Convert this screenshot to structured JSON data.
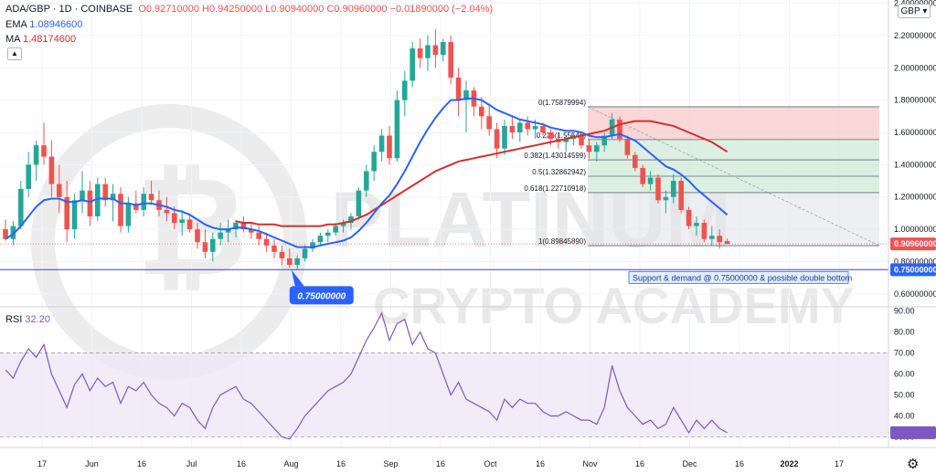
{
  "header": {
    "symbol": "ADA/GBP",
    "interval": "1D",
    "exchange": "COINBASE",
    "ohlc": "O0.92710000 H0.94250000 L0.90940000 C0.90960000 −0.01890000 (−2.04%)",
    "ema_label": "EMA",
    "ema_value": "1.08946600",
    "ma_label": "MA",
    "ma_value": "1.48174600"
  },
  "currency_button": "GBP",
  "collapse_icon": "chevron-up-icon",
  "settings_icon": "gear-icon",
  "colors": {
    "up": "#26a69a",
    "down": "#ef5350",
    "ema": "#2962ff",
    "ma": "#d32f2f",
    "support": "#2962ff",
    "rsi": "#7e57c2",
    "fib_red_zone": "#f7c9c9",
    "fib_green_zone": "#cfe8d6",
    "price_tag": "#ef5350"
  },
  "watermark": {
    "line1": "PLATINUM",
    "line2": "CRYPTO ACADEMY"
  },
  "chart_data": [
    {
      "type": "candlestick",
      "title": "ADA/GBP · 1D · COINBASE",
      "x_ticks": [
        "17",
        "Jun",
        "16",
        "Jul",
        "16",
        "Aug",
        "16",
        "Sep",
        "16",
        "Oct",
        "16",
        "Nov",
        "16",
        "Dec",
        "16",
        "2022",
        "17"
      ],
      "y_ticks": [
        "0.60000000",
        "0.80000000",
        "1.00000000",
        "1.20000000",
        "1.40000000",
        "1.60000000",
        "1.80000000",
        "2.00000000",
        "2.20000000",
        "2.40000000"
      ],
      "ylim": [
        0.52,
        2.42
      ],
      "last_price": 0.9096,
      "last_price_label": "0.90960000",
      "support_level": 0.75,
      "support_label": "0.75000000",
      "support_callout": "0.75000000",
      "support_note": "Support & demand @ 0.75000000 & possible double bottom",
      "fib_levels": [
        {
          "label": "0(1.75879994)",
          "value": 1.7588
        },
        {
          "label": "0.382(1.43014599)",
          "value": 1.43015
        },
        {
          "label": "0.5(1.32862942)",
          "value": 1.32863
        },
        {
          "label": "0.618(1.22710918)",
          "value": 1.22711
        },
        {
          "label": "1(0.89845890)",
          "value": 0.89846
        }
      ],
      "fib_hidden_label": "0.236(1.55546)",
      "fib_hidden_value": 1.55546,
      "candles": [
        [
          1.0,
          1.06,
          0.93,
          0.94
        ],
        [
          0.94,
          1.05,
          0.9,
          1.02
        ],
        [
          1.02,
          1.3,
          1.0,
          1.25
        ],
        [
          1.25,
          1.48,
          1.2,
          1.4
        ],
        [
          1.4,
          1.55,
          1.3,
          1.52
        ],
        [
          1.52,
          1.66,
          1.4,
          1.45
        ],
        [
          1.45,
          1.55,
          1.2,
          1.28
        ],
        [
          1.28,
          1.4,
          1.1,
          1.2
        ],
        [
          1.2,
          1.3,
          0.92,
          1.0
        ],
        [
          1.0,
          1.22,
          0.94,
          1.18
        ],
        [
          1.18,
          1.36,
          1.1,
          1.24
        ],
        [
          1.24,
          1.3,
          1.02,
          1.08
        ],
        [
          1.08,
          1.32,
          1.05,
          1.28
        ],
        [
          1.28,
          1.32,
          1.14,
          1.18
        ],
        [
          1.18,
          1.28,
          1.05,
          1.22
        ],
        [
          1.22,
          1.26,
          0.98,
          1.02
        ],
        [
          1.02,
          1.2,
          0.98,
          1.16
        ],
        [
          1.16,
          1.24,
          1.1,
          1.12
        ],
        [
          1.12,
          1.26,
          1.08,
          1.22
        ],
        [
          1.22,
          1.3,
          1.15,
          1.18
        ],
        [
          1.18,
          1.24,
          1.08,
          1.12
        ],
        [
          1.12,
          1.2,
          1.05,
          1.1
        ],
        [
          1.1,
          1.14,
          1.0,
          1.04
        ],
        [
          1.04,
          1.12,
          0.96,
          1.06
        ],
        [
          1.06,
          1.1,
          0.98,
          1.0
        ],
        [
          1.0,
          1.04,
          0.88,
          0.92
        ],
        [
          0.92,
          1.0,
          0.82,
          0.86
        ],
        [
          0.86,
          0.98,
          0.8,
          0.94
        ],
        [
          0.94,
          1.04,
          0.9,
          0.98
        ],
        [
          0.98,
          1.06,
          0.92,
          1.0
        ],
        [
          1.0,
          1.06,
          0.95,
          1.04
        ],
        [
          1.04,
          1.08,
          0.98,
          1.0
        ],
        [
          1.0,
          1.04,
          0.94,
          0.98
        ],
        [
          0.98,
          1.02,
          0.9,
          0.94
        ],
        [
          0.94,
          0.98,
          0.86,
          0.9
        ],
        [
          0.9,
          0.94,
          0.82,
          0.86
        ],
        [
          0.86,
          0.9,
          0.78,
          0.82
        ],
        [
          0.82,
          0.88,
          0.76,
          0.78
        ],
        [
          0.78,
          0.84,
          0.75,
          0.82
        ],
        [
          0.82,
          0.9,
          0.8,
          0.88
        ],
        [
          0.88,
          0.94,
          0.86,
          0.92
        ],
        [
          0.92,
          0.98,
          0.9,
          0.96
        ],
        [
          0.96,
          1.0,
          0.92,
          0.98
        ],
        [
          0.98,
          1.04,
          0.96,
          1.02
        ],
        [
          1.02,
          1.06,
          0.98,
          1.04
        ],
        [
          1.04,
          1.1,
          1.0,
          1.08
        ],
        [
          1.08,
          1.26,
          1.06,
          1.24
        ],
        [
          1.24,
          1.4,
          1.2,
          1.36
        ],
        [
          1.36,
          1.52,
          1.3,
          1.48
        ],
        [
          1.48,
          1.62,
          1.42,
          1.58
        ],
        [
          1.58,
          1.64,
          1.4,
          1.44
        ],
        [
          1.44,
          1.86,
          1.42,
          1.8
        ],
        [
          1.8,
          1.98,
          1.7,
          1.92
        ],
        [
          1.92,
          2.16,
          1.88,
          2.12
        ],
        [
          2.12,
          2.18,
          2.0,
          2.06
        ],
        [
          2.06,
          2.2,
          1.98,
          2.14
        ],
        [
          2.14,
          2.24,
          2.0,
          2.08
        ],
        [
          2.08,
          2.18,
          2.04,
          2.16
        ],
        [
          2.16,
          2.2,
          1.9,
          1.94
        ],
        [
          1.94,
          2.0,
          1.7,
          1.8
        ],
        [
          1.8,
          1.92,
          1.6,
          1.86
        ],
        [
          1.86,
          1.88,
          1.7,
          1.76
        ],
        [
          1.76,
          1.82,
          1.62,
          1.7
        ],
        [
          1.7,
          1.78,
          1.58,
          1.62
        ],
        [
          1.62,
          1.66,
          1.44,
          1.5
        ],
        [
          1.5,
          1.68,
          1.46,
          1.64
        ],
        [
          1.64,
          1.7,
          1.56,
          1.6
        ],
        [
          1.6,
          1.68,
          1.54,
          1.66
        ],
        [
          1.66,
          1.7,
          1.58,
          1.62
        ],
        [
          1.62,
          1.68,
          1.56,
          1.64
        ],
        [
          1.64,
          1.66,
          1.58,
          1.6
        ],
        [
          1.6,
          1.62,
          1.52,
          1.56
        ],
        [
          1.56,
          1.6,
          1.5,
          1.54
        ],
        [
          1.54,
          1.58,
          1.48,
          1.56
        ],
        [
          1.56,
          1.6,
          1.52,
          1.58
        ],
        [
          1.58,
          1.6,
          1.5,
          1.52
        ],
        [
          1.52,
          1.56,
          1.44,
          1.48
        ],
        [
          1.48,
          1.54,
          1.42,
          1.52
        ],
        [
          1.52,
          1.6,
          1.48,
          1.58
        ],
        [
          1.58,
          1.72,
          1.56,
          1.68
        ],
        [
          1.68,
          1.7,
          1.54,
          1.56
        ],
        [
          1.56,
          1.58,
          1.44,
          1.46
        ],
        [
          1.46,
          1.48,
          1.36,
          1.38
        ],
        [
          1.38,
          1.4,
          1.26,
          1.28
        ],
        [
          1.28,
          1.36,
          1.24,
          1.32
        ],
        [
          1.32,
          1.34,
          1.16,
          1.18
        ],
        [
          1.18,
          1.24,
          1.1,
          1.2
        ],
        [
          1.2,
          1.34,
          1.16,
          1.3
        ],
        [
          1.3,
          1.32,
          1.1,
          1.12
        ],
        [
          1.12,
          1.14,
          1.0,
          1.02
        ],
        [
          1.02,
          1.08,
          0.96,
          1.04
        ],
        [
          1.04,
          1.06,
          0.92,
          0.94
        ],
        [
          0.94,
          1.02,
          0.9,
          0.96
        ],
        [
          0.96,
          1.0,
          0.88,
          0.92
        ],
        [
          0.927,
          0.9425,
          0.9094,
          0.9096
        ]
      ],
      "ema": [
        0.94,
        0.97,
        1.02,
        1.08,
        1.14,
        1.18,
        1.19,
        1.19,
        1.17,
        1.17,
        1.18,
        1.17,
        1.19,
        1.19,
        1.19,
        1.16,
        1.16,
        1.15,
        1.16,
        1.16,
        1.15,
        1.14,
        1.12,
        1.11,
        1.09,
        1.06,
        1.03,
        1.01,
        1.0,
        1.0,
        1.01,
        1.01,
        1.0,
        0.99,
        0.97,
        0.95,
        0.93,
        0.91,
        0.89,
        0.89,
        0.89,
        0.9,
        0.91,
        0.92,
        0.93,
        0.95,
        0.99,
        1.04,
        1.1,
        1.16,
        1.21,
        1.28,
        1.36,
        1.45,
        1.54,
        1.62,
        1.69,
        1.75,
        1.8,
        1.8,
        1.81,
        1.81,
        1.8,
        1.77,
        1.74,
        1.72,
        1.7,
        1.68,
        1.67,
        1.66,
        1.65,
        1.63,
        1.62,
        1.61,
        1.61,
        1.6,
        1.58,
        1.57,
        1.57,
        1.58,
        1.59,
        1.57,
        1.55,
        1.51,
        1.47,
        1.43,
        1.39,
        1.37,
        1.34,
        1.3,
        1.25,
        1.21,
        1.17,
        1.13,
        1.09
      ],
      "ma": [
        null,
        null,
        null,
        null,
        null,
        null,
        null,
        null,
        null,
        null,
        null,
        null,
        null,
        null,
        null,
        null,
        null,
        null,
        null,
        null,
        null,
        null,
        null,
        null,
        null,
        null,
        null,
        null,
        null,
        null,
        1.05,
        1.04,
        1.04,
        1.03,
        1.03,
        1.03,
        1.02,
        1.02,
        1.02,
        1.02,
        1.02,
        1.02,
        1.03,
        1.03,
        1.04,
        1.05,
        1.07,
        1.09,
        1.12,
        1.15,
        1.18,
        1.21,
        1.24,
        1.27,
        1.3,
        1.33,
        1.36,
        1.38,
        1.4,
        1.42,
        1.43,
        1.44,
        1.45,
        1.46,
        1.47,
        1.48,
        1.49,
        1.5,
        1.51,
        1.52,
        1.53,
        1.54,
        1.55,
        1.56,
        1.57,
        1.58,
        1.59,
        1.6,
        1.61,
        1.63,
        1.65,
        1.66,
        1.67,
        1.67,
        1.67,
        1.66,
        1.65,
        1.64,
        1.62,
        1.6,
        1.58,
        1.56,
        1.54,
        1.51,
        1.48
      ]
    },
    {
      "type": "line",
      "title": "RSI",
      "series": [
        {
          "name": "RSI",
          "values": [
            62,
            58,
            66,
            72,
            68,
            74,
            60,
            52,
            44,
            55,
            60,
            52,
            58,
            54,
            56,
            46,
            54,
            52,
            56,
            50,
            46,
            44,
            40,
            46,
            44,
            38,
            34,
            44,
            50,
            52,
            54,
            48,
            46,
            42,
            38,
            34,
            30,
            29,
            34,
            40,
            44,
            48,
            52,
            54,
            56,
            60,
            68,
            76,
            82,
            89,
            76,
            84,
            86,
            74,
            80,
            72,
            70,
            60,
            50,
            56,
            48,
            46,
            44,
            42,
            38,
            48,
            44,
            48,
            46,
            46,
            42,
            40,
            40,
            42,
            40,
            38,
            38,
            36,
            44,
            64,
            52,
            44,
            40,
            36,
            38,
            34,
            36,
            44,
            38,
            32,
            38,
            34,
            38,
            34,
            32
          ]
        }
      ],
      "last_value": "32.20",
      "y_ticks": [
        "30.00",
        "40.00",
        "50.00",
        "60.00",
        "70.00",
        "80.00",
        "90.00"
      ],
      "ylim": [
        25,
        92
      ],
      "bands": [
        30,
        70
      ]
    }
  ]
}
